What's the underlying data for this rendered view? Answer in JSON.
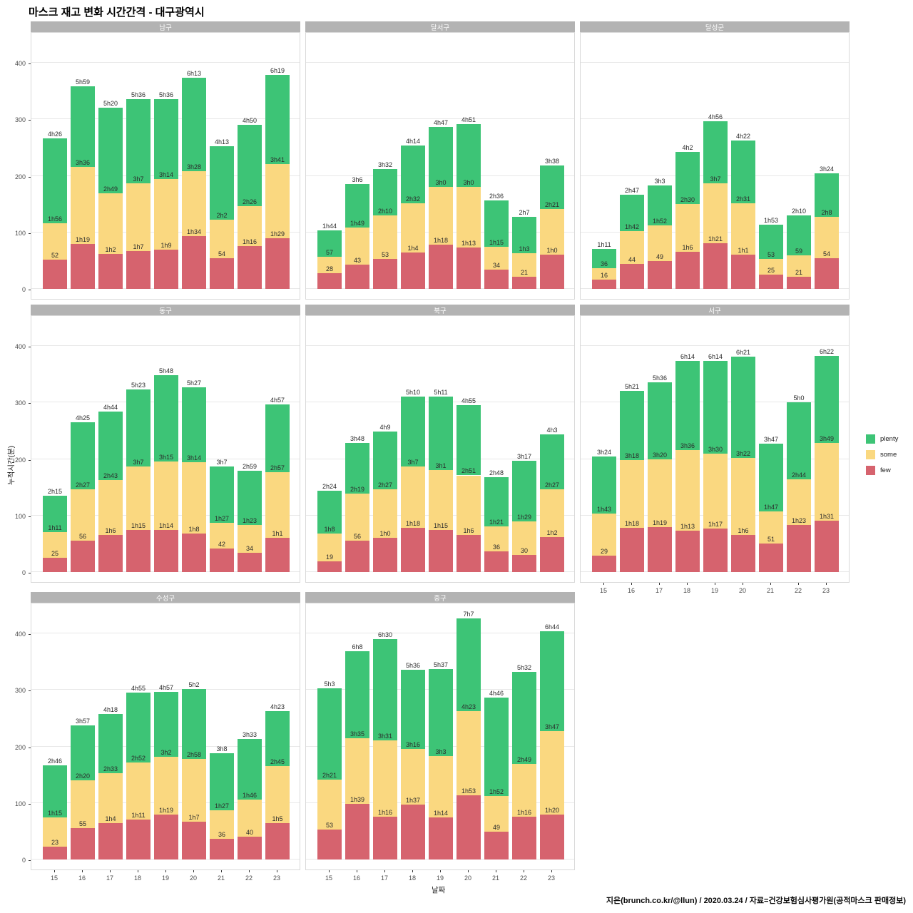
{
  "title": "마스크 재고 변화 시간간격 - 대구광역시",
  "footer": "지은(brunch.co.kr/@llun) / 2020.03.24 / 자료=건강보험심사평가원(공적마스크 판매정보)",
  "legend": {
    "items": [
      {
        "label": "plenty",
        "color": "#3dc476"
      },
      {
        "label": "some",
        "color": "#fad880"
      },
      {
        "label": "few",
        "color": "#d6636e"
      }
    ]
  },
  "chart_data": {
    "type": "bar",
    "stacked": true,
    "title": "마스크 재고 변화 시간간격 - 대구광역시",
    "xlabel": "날짜",
    "ylabel": "누적시간(분)",
    "x": [
      "15",
      "16",
      "17",
      "18",
      "19",
      "20",
      "21",
      "22",
      "23"
    ],
    "yticks": [
      0,
      100,
      200,
      300,
      400
    ],
    "ylim": [
      0,
      460
    ],
    "legend_position": "right",
    "series_order_bottom_to_top": [
      "few",
      "some",
      "plenty"
    ],
    "label_semantics": "labels above each segment boundary are cumulative times in minutes (XhY = X hours Y min): few, few+some, total",
    "facets": [
      {
        "name": "남구",
        "bars": [
          {
            "few": "52",
            "few_plus_some": "1h56",
            "total": "4h26"
          },
          {
            "few": "1h19",
            "few_plus_some": "3h36",
            "total": "5h59"
          },
          {
            "few": "1h2",
            "few_plus_some": "2h49",
            "total": "5h20"
          },
          {
            "few": "1h7",
            "few_plus_some": "3h7",
            "total": "5h36"
          },
          {
            "few": "1h9",
            "few_plus_some": "3h14",
            "total": "5h36"
          },
          {
            "few": "1h34",
            "few_plus_some": "3h28",
            "total": "6h13"
          },
          {
            "few": "54",
            "few_plus_some": "2h2",
            "total": "4h13"
          },
          {
            "few": "1h16",
            "few_plus_some": "2h26",
            "total": "4h50"
          },
          {
            "few": "1h29",
            "few_plus_some": "3h41",
            "total": "6h19"
          }
        ]
      },
      {
        "name": "달서구",
        "bars": [
          {
            "few": "28",
            "few_plus_some": "57",
            "total": "1h44"
          },
          {
            "few": "43",
            "few_plus_some": "1h49",
            "total": "3h6"
          },
          {
            "few": "53",
            "few_plus_some": "2h10",
            "total": "3h32"
          },
          {
            "few": "1h4",
            "few_plus_some": "2h32",
            "total": "4h14"
          },
          {
            "few": "1h18",
            "few_plus_some": "3h0",
            "total": "4h47"
          },
          {
            "few": "1h13",
            "few_plus_some": "3h0",
            "total": "4h51"
          },
          {
            "few": "34",
            "few_plus_some": "1h15",
            "total": "2h36"
          },
          {
            "few": "21",
            "few_plus_some": "1h3",
            "total": "2h7"
          },
          {
            "few": "1h0",
            "few_plus_some": "2h21",
            "total": "3h38"
          }
        ]
      },
      {
        "name": "달성군",
        "bars": [
          {
            "few": "16",
            "few_plus_some": "36",
            "total": "1h11"
          },
          {
            "few": "44",
            "few_plus_some": "1h42",
            "total": "2h47"
          },
          {
            "few": "49",
            "few_plus_some": "1h52",
            "total": "3h3"
          },
          {
            "few": "1h6",
            "few_plus_some": "2h30",
            "total": "4h2"
          },
          {
            "few": "1h21",
            "few_plus_some": "3h7",
            "total": "4h56"
          },
          {
            "few": "1h1",
            "few_plus_some": "2h31",
            "total": "4h22"
          },
          {
            "few": "25",
            "few_plus_some": "53",
            "total": "1h53"
          },
          {
            "few": "21",
            "few_plus_some": "59",
            "total": "2h10"
          },
          {
            "few": "54",
            "few_plus_some": "2h8",
            "total": "3h24"
          }
        ]
      },
      {
        "name": "동구",
        "bars": [
          {
            "few": "25",
            "few_plus_some": "1h11",
            "total": "2h15"
          },
          {
            "few": "56",
            "few_plus_some": "2h27",
            "total": "4h25"
          },
          {
            "few": "1h6",
            "few_plus_some": "2h43",
            "total": "4h44"
          },
          {
            "few": "1h15",
            "few_plus_some": "3h7",
            "total": "5h23"
          },
          {
            "few": "1h14",
            "few_plus_some": "3h15",
            "total": "5h48"
          },
          {
            "few": "1h8",
            "few_plus_some": "3h14",
            "total": "5h27"
          },
          {
            "few": "42",
            "few_plus_some": "1h27",
            "total": "3h7"
          },
          {
            "few": "34",
            "few_plus_some": "1h23",
            "total": "2h59"
          },
          {
            "few": "1h1",
            "few_plus_some": "2h57",
            "total": "4h57"
          }
        ]
      },
      {
        "name": "북구",
        "bars": [
          {
            "few": "19",
            "few_plus_some": "1h8",
            "total": "2h24"
          },
          {
            "few": "56",
            "few_plus_some": "2h19",
            "total": "3h48"
          },
          {
            "few": "1h0",
            "few_plus_some": "2h27",
            "total": "4h9"
          },
          {
            "few": "1h18",
            "few_plus_some": "3h7",
            "total": "5h10"
          },
          {
            "few": "1h15",
            "few_plus_some": "3h1",
            "total": "5h11"
          },
          {
            "few": "1h6",
            "few_plus_some": "2h51",
            "total": "4h55"
          },
          {
            "few": "36",
            "few_plus_some": "1h21",
            "total": "2h48"
          },
          {
            "few": "30",
            "few_plus_some": "1h29",
            "total": "3h17"
          },
          {
            "few": "1h2",
            "few_plus_some": "2h27",
            "total": "4h3"
          }
        ]
      },
      {
        "name": "서구",
        "bars": [
          {
            "few": "29",
            "few_plus_some": "1h43",
            "total": "3h24"
          },
          {
            "few": "1h18",
            "few_plus_some": "3h18",
            "total": "5h21"
          },
          {
            "few": "1h19",
            "few_plus_some": "3h20",
            "total": "5h36"
          },
          {
            "few": "1h13",
            "few_plus_some": "3h36",
            "total": "6h14"
          },
          {
            "few": "1h17",
            "few_plus_some": "3h30",
            "total": "6h14"
          },
          {
            "few": "1h6",
            "few_plus_some": "3h22",
            "total": "6h21"
          },
          {
            "few": "51",
            "few_plus_some": "1h47",
            "total": "3h47"
          },
          {
            "few": "1h23",
            "few_plus_some": "2h44",
            "total": "5h0"
          },
          {
            "few": "1h31",
            "few_plus_some": "3h49",
            "total": "6h22"
          }
        ]
      },
      {
        "name": "수성구",
        "bars": [
          {
            "few": "23",
            "few_plus_some": "1h15",
            "total": "2h46"
          },
          {
            "few": "55",
            "few_plus_some": "2h20",
            "total": "3h57"
          },
          {
            "few": "1h4",
            "few_plus_some": "2h33",
            "total": "4h18"
          },
          {
            "few": "1h11",
            "few_plus_some": "2h52",
            "total": "4h55"
          },
          {
            "few": "1h19",
            "few_plus_some": "3h2",
            "total": "4h57"
          },
          {
            "few": "1h7",
            "few_plus_some": "2h58",
            "total": "5h2"
          },
          {
            "few": "36",
            "few_plus_some": "1h27",
            "total": "3h8"
          },
          {
            "few": "40",
            "few_plus_some": "1h46",
            "total": "3h33"
          },
          {
            "few": "1h5",
            "few_plus_some": "2h45",
            "total": "4h23"
          }
        ]
      },
      {
        "name": "중구",
        "bars": [
          {
            "few": "53",
            "few_plus_some": "2h21",
            "total": "5h3"
          },
          {
            "few": "1h39",
            "few_plus_some": "3h35",
            "total": "6h8"
          },
          {
            "few": "1h16",
            "few_plus_some": "3h31",
            "total": "6h30"
          },
          {
            "few": "1h37",
            "few_plus_some": "3h16",
            "total": "5h36"
          },
          {
            "few": "1h14",
            "few_plus_some": "3h3",
            "total": "5h37"
          },
          {
            "few": "1h53",
            "few_plus_some": "4h23",
            "total": "7h7"
          },
          {
            "few": "49",
            "few_plus_some": "1h52",
            "total": "4h46"
          },
          {
            "few": "1h16",
            "few_plus_some": "2h49",
            "total": "5h32"
          },
          {
            "few": "1h20",
            "few_plus_some": "3h47",
            "total": "6h44"
          }
        ]
      }
    ]
  }
}
